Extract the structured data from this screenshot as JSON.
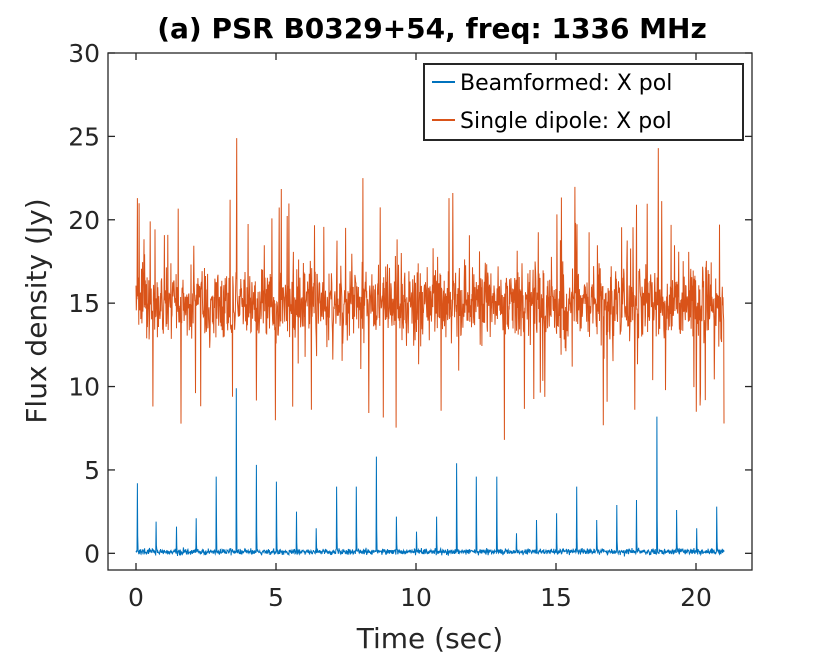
{
  "chart_data": {
    "type": "line",
    "title": "(a) PSR B0329+54, freq: 1336 MHz",
    "xlabel": "Time (sec)",
    "ylabel": "Flux density (Jy)",
    "xlim": [
      -1,
      22
    ],
    "ylim": [
      -1,
      30
    ],
    "xticks": [
      0,
      5,
      10,
      15,
      20
    ],
    "yticks": [
      0,
      5,
      10,
      15,
      20,
      25,
      30
    ],
    "xtick_labels": [
      "0",
      "5",
      "10",
      "15",
      "20"
    ],
    "ytick_labels": [
      "0",
      "5",
      "10",
      "15",
      "20",
      "25",
      "30"
    ],
    "legend_position": "top-right",
    "time_range": [
      0,
      21
    ],
    "pulse_period_sec": 0.714,
    "series": [
      {
        "name": "Beamformed: X pol",
        "color": "#0072BD",
        "baseline": 0.1,
        "noise_amplitude": 0.25,
        "pulse_times": [
          0.05,
          0.72,
          1.44,
          2.15,
          2.87,
          3.58,
          4.3,
          5.01,
          5.73,
          6.44,
          7.16,
          7.87,
          8.59,
          9.3,
          10.02,
          10.73,
          11.45,
          12.16,
          12.88,
          13.59,
          14.31,
          15.02,
          15.74,
          16.45,
          17.17,
          17.88,
          18.6,
          19.31,
          20.03,
          20.74
        ],
        "pulse_peaks": [
          4.2,
          1.9,
          1.6,
          2.1,
          4.6,
          9.9,
          5.3,
          4.3,
          2.5,
          1.5,
          4.0,
          4.0,
          5.8,
          2.2,
          1.3,
          2.2,
          5.4,
          4.6,
          4.6,
          1.2,
          2.0,
          2.4,
          4.0,
          2.0,
          2.9,
          3.2,
          8.2,
          2.6,
          1.5,
          2.8
        ]
      },
      {
        "name": "Single dipole: X pol",
        "color": "#D95319",
        "baseline": 15.0,
        "noise_amplitude": 2.6,
        "extreme_points": [
          {
            "t": 0.05,
            "v": 21.3
          },
          {
            "t": 3.6,
            "v": 24.9
          },
          {
            "t": 13.15,
            "v": 6.8
          },
          {
            "t": 18.65,
            "v": 24.3
          },
          {
            "t": 5.6,
            "v": 8.8
          },
          {
            "t": 8.1,
            "v": 22.5
          }
        ]
      }
    ]
  }
}
